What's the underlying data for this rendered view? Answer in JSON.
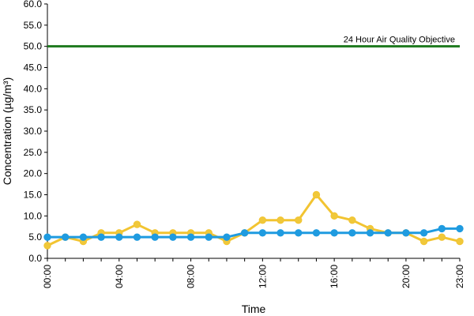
{
  "chart_data": {
    "type": "line",
    "xlabel": "Time",
    "ylabel": "Concentration (µg/m³)",
    "ylim": [
      0,
      60
    ],
    "yticks": [
      "0.0",
      "5.0",
      "10.0",
      "15.0",
      "20.0",
      "25.0",
      "30.0",
      "35.0",
      "40.0",
      "45.0",
      "50.0",
      "55.0",
      "60.0"
    ],
    "x": [
      "00:00",
      "01:00",
      "02:00",
      "03:00",
      "04:00",
      "05:00",
      "06:00",
      "07:00",
      "08:00",
      "09:00",
      "10:00",
      "11:00",
      "12:00",
      "13:00",
      "14:00",
      "15:00",
      "16:00",
      "17:00",
      "18:00",
      "19:00",
      "20:00",
      "21:00",
      "22:00",
      "23:00"
    ],
    "xtick_labels": [
      "00:00",
      "04:00",
      "08:00",
      "12:00",
      "16:00",
      "20:00",
      "23:00"
    ],
    "grid": false,
    "legend": "none",
    "series": [
      {
        "color": "#f2c431",
        "marker_color": "#f0c83a",
        "values": [
          3,
          5,
          4,
          6,
          6,
          8,
          6,
          6,
          6,
          6,
          4,
          6,
          9,
          9,
          9,
          15,
          10,
          9,
          7,
          6,
          6,
          4,
          5,
          4
        ]
      },
      {
        "color": "#1f9be0",
        "marker_color": "#1f9be0",
        "values": [
          5,
          5,
          5,
          5,
          5,
          5,
          5,
          5,
          5,
          5,
          5,
          6,
          6,
          6,
          6,
          6,
          6,
          6,
          6,
          6,
          6,
          6,
          7,
          7
        ]
      }
    ],
    "reference_line": {
      "value": 50,
      "label": "24 Hour Air Quality Objective",
      "color": "#1e7a1e"
    }
  }
}
